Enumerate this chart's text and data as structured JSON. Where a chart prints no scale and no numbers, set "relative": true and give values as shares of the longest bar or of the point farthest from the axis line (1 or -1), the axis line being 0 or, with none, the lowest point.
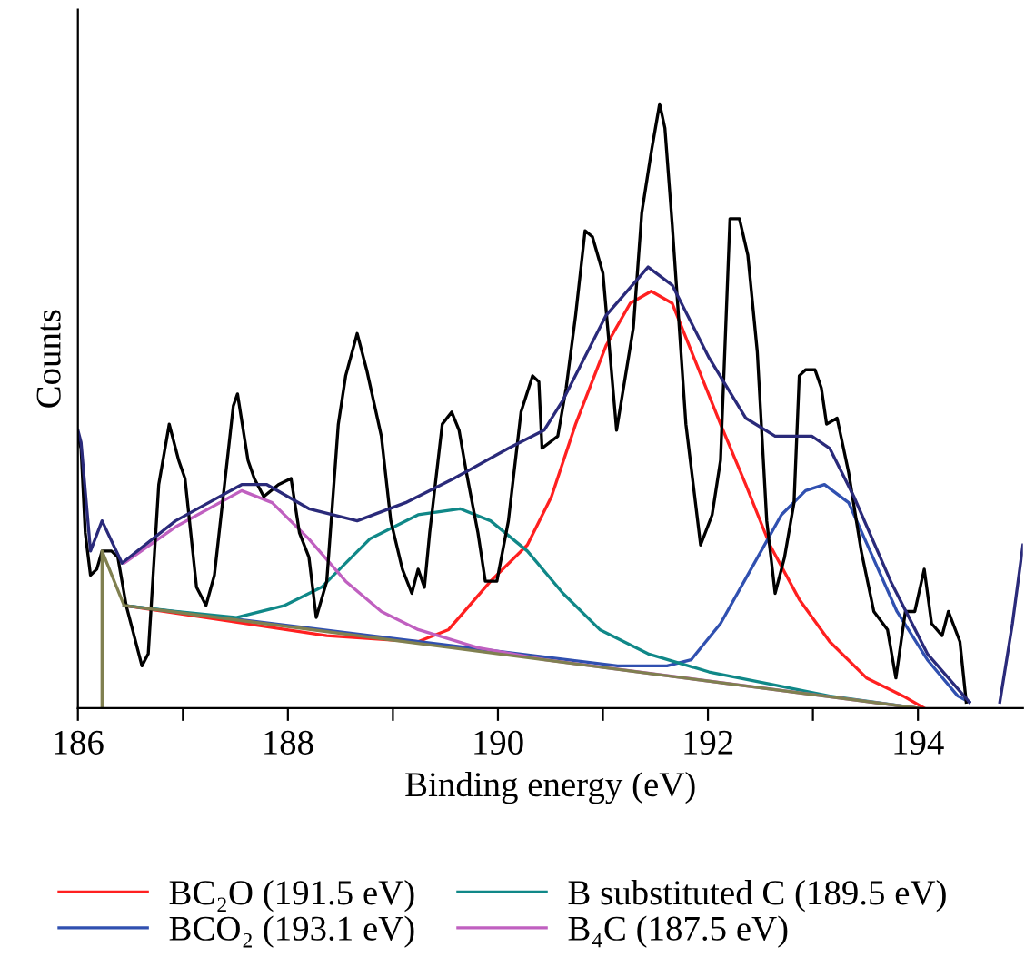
{
  "chart_data": {
    "type": "line",
    "relative": true,
    "xlabel": "Binding energy (eV)",
    "ylabel": "Counts",
    "xlim": [
      186,
      195
    ],
    "xticks": [
      186,
      {
        "value": 187,
        "label": null
      },
      188,
      {
        "value": 189,
        "label": null
      },
      190,
      {
        "value": 191,
        "label": null
      },
      192,
      {
        "value": 193,
        "label": null
      },
      194
    ],
    "legend": "bottom",
    "grid": false,
    "marker": "none",
    "line_style": "solid",
    "series": [
      {
        "name": "BC₂O (191.5 eV)",
        "color": "#ff2020",
        "x": [
          186.44,
          188.37,
          189.24,
          189.53,
          189.93,
          190.28,
          190.51,
          190.74,
          191.03,
          191.26,
          191.46,
          191.66,
          191.89,
          192.12,
          192.36,
          192.59,
          192.87,
          193.16,
          193.51,
          193.86,
          194.06
        ],
        "values": [
          0.17,
          0.12,
          0.11,
          0.13,
          0.21,
          0.27,
          0.35,
          0.47,
          0.6,
          0.67,
          0.69,
          0.67,
          0.57,
          0.47,
          0.37,
          0.27,
          0.18,
          0.11,
          0.05,
          0.02,
          0.0
        ]
      },
      {
        "name": "BCO₂ (193.1 eV)",
        "color": "#3050b0",
        "x": [
          186.44,
          191.14,
          191.61,
          191.84,
          192.12,
          192.41,
          192.7,
          192.93,
          193.11,
          193.34,
          193.57,
          193.8,
          194.09,
          194.38,
          194.49
        ],
        "values": [
          0.17,
          0.07,
          0.07,
          0.08,
          0.14,
          0.23,
          0.32,
          0.36,
          0.37,
          0.34,
          0.25,
          0.16,
          0.08,
          0.02,
          0.01
        ]
      },
      {
        "name": "B substituted C (189.5 eV)",
        "color": "#108888",
        "x": [
          186.44,
          186.93,
          187.51,
          187.97,
          188.32,
          188.78,
          189.24,
          189.64,
          189.93,
          190.28,
          190.62,
          190.97,
          191.43,
          192.01,
          192.59,
          193.16,
          194.0
        ],
        "values": [
          0.17,
          0.16,
          0.15,
          0.17,
          0.2,
          0.28,
          0.32,
          0.33,
          0.31,
          0.26,
          0.19,
          0.13,
          0.09,
          0.06,
          0.04,
          0.02,
          0.0
        ]
      },
      {
        "name": "B₄C (187.5 eV)",
        "color": "#c060c0",
        "x": [
          186.44,
          186.93,
          187.56,
          187.85,
          188.2,
          188.55,
          188.89,
          189.24,
          189.81,
          190.45,
          194.0
        ],
        "values": [
          0.24,
          0.3,
          0.36,
          0.34,
          0.28,
          0.21,
          0.16,
          0.13,
          0.1,
          0.08,
          0.0
        ]
      },
      {
        "color": "#000000",
        "x": [
          186.0,
          186.03,
          186.07,
          186.12,
          186.18,
          186.23,
          186.32,
          186.38,
          186.46,
          186.52,
          186.61,
          186.67,
          186.77,
          186.87,
          186.96,
          187.02,
          187.13,
          187.22,
          187.3,
          187.48,
          187.52,
          187.62,
          187.68,
          187.77,
          187.91,
          188.03,
          188.11,
          188.2,
          188.27,
          188.37,
          188.48,
          188.55,
          188.66,
          188.75,
          188.89,
          188.98,
          189.09,
          189.18,
          189.24,
          189.3,
          189.35,
          189.47,
          189.56,
          189.63,
          189.7,
          189.81,
          189.88,
          189.99,
          190.1,
          190.22,
          190.33,
          190.39,
          190.42,
          190.57,
          190.65,
          190.74,
          190.83,
          190.9,
          191.0,
          191.13,
          191.29,
          191.37,
          191.46,
          191.54,
          191.59,
          191.66,
          191.79,
          191.93,
          192.04,
          192.12,
          192.21,
          192.3,
          192.38,
          192.47,
          192.56,
          192.64,
          192.73,
          192.82,
          192.87,
          192.93,
          193.02,
          193.08,
          193.13,
          193.23,
          193.34,
          193.46,
          193.58,
          193.71,
          193.79,
          193.88,
          193.97,
          194.06,
          194.13,
          194.23,
          194.29,
          194.4,
          194.46
        ],
        "values": [
          0.45,
          0.43,
          0.29,
          0.22,
          0.23,
          0.26,
          0.26,
          0.25,
          0.17,
          0.13,
          0.07,
          0.09,
          0.37,
          0.47,
          0.41,
          0.38,
          0.2,
          0.17,
          0.22,
          0.5,
          0.52,
          0.41,
          0.38,
          0.35,
          0.37,
          0.38,
          0.29,
          0.25,
          0.15,
          0.21,
          0.47,
          0.55,
          0.62,
          0.56,
          0.45,
          0.31,
          0.23,
          0.19,
          0.23,
          0.2,
          0.29,
          0.47,
          0.49,
          0.46,
          0.39,
          0.29,
          0.21,
          0.21,
          0.31,
          0.49,
          0.55,
          0.54,
          0.43,
          0.45,
          0.53,
          0.65,
          0.79,
          0.78,
          0.72,
          0.46,
          0.63,
          0.82,
          0.92,
          1.0,
          0.96,
          0.8,
          0.47,
          0.27,
          0.32,
          0.41,
          0.81,
          0.81,
          0.75,
          0.59,
          0.31,
          0.19,
          0.25,
          0.34,
          0.55,
          0.56,
          0.56,
          0.53,
          0.47,
          0.48,
          0.39,
          0.26,
          0.16,
          0.13,
          0.05,
          0.16,
          0.16,
          0.23,
          0.14,
          0.12,
          0.16,
          0.11,
          0.01
        ]
      },
      {
        "color": "#2a2a7a",
        "x": [
          186.0,
          186.03,
          186.12,
          186.23,
          186.42,
          186.93,
          187.56,
          187.8,
          188.2,
          188.66,
          189.12,
          189.58,
          190.1,
          190.44,
          190.62,
          191.03,
          191.43,
          191.66,
          192.01,
          192.36,
          192.64,
          192.99,
          193.16,
          193.39,
          193.74,
          194.09,
          194.49,
          194.6,
          194.78,
          194.9,
          195.0
        ],
        "values": [
          0.46,
          0.44,
          0.26,
          0.31,
          0.24,
          0.31,
          0.37,
          0.37,
          0.33,
          0.31,
          0.34,
          0.38,
          0.43,
          0.46,
          0.51,
          0.65,
          0.73,
          0.7,
          0.58,
          0.48,
          0.45,
          0.45,
          0.43,
          0.35,
          0.21,
          0.09,
          0.01,
          null,
          0.01,
          0.14,
          0.27
        ]
      },
      {
        "color": "#808050",
        "x": [
          186.23,
          186.23,
          186.44,
          194.0
        ],
        "values": [
          0.0,
          0.26,
          0.17,
          0.0
        ]
      }
    ]
  }
}
